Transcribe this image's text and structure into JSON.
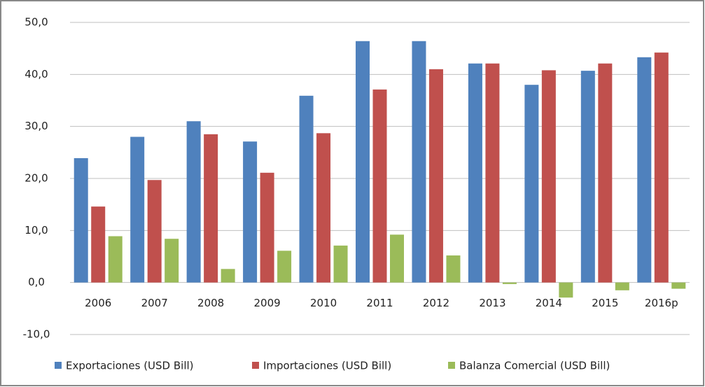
{
  "chart_data": {
    "type": "bar",
    "categories": [
      "2006",
      "2007",
      "2008",
      "2009",
      "2010",
      "2011",
      "2012",
      "2013",
      "2014",
      "2015",
      "2016p"
    ],
    "series": [
      {
        "name": "Exportaciones (USD Bill)",
        "color": "#4f81bd",
        "values": [
          23.9,
          28.0,
          31.0,
          27.1,
          35.9,
          46.4,
          46.4,
          42.1,
          38.0,
          40.7,
          43.3
        ]
      },
      {
        "name": "Importaciones (USD Bill)",
        "color": "#c0504d",
        "values": [
          14.6,
          19.7,
          28.5,
          21.1,
          28.7,
          37.1,
          41.0,
          42.1,
          40.8,
          42.1,
          44.2
        ]
      },
      {
        "name": "Balanza Comercial (USD Bill)",
        "color": "#9bbb59",
        "values": [
          8.9,
          8.4,
          2.6,
          6.1,
          7.1,
          9.2,
          5.2,
          -0.3,
          -2.9,
          -1.5,
          -1.2
        ]
      }
    ],
    "ylim": [
      -10,
      50
    ],
    "yticks": [
      {
        "value": -10,
        "label": "-10,0"
      },
      {
        "value": 0,
        "label": "0,0"
      },
      {
        "value": 10,
        "label": "10,0"
      },
      {
        "value": 20,
        "label": "20,0"
      },
      {
        "value": 30,
        "label": "30,0"
      },
      {
        "value": 40,
        "label": "40,0"
      },
      {
        "value": 50,
        "label": "50,0"
      }
    ],
    "grid": true,
    "legend": "bottom"
  }
}
